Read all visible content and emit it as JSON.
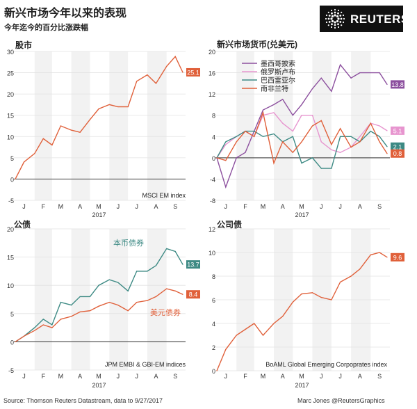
{
  "title": "新兴市场今年以来的表现",
  "subtitle": "今年迄今的百分比涨跌幅",
  "logo": "REUTERS",
  "footer": {
    "source": "Source: Thomson Reuters Datastream, data to 9/27/2017",
    "credit": "Marc Jones @ReutersGraphics"
  },
  "colors": {
    "orange": "#e0603a",
    "purple": "#8c4f9e",
    "pink": "#e795cf",
    "teal": "#3d8a84",
    "shade": "#f2f2f2"
  },
  "chart_data": [
    {
      "type": "line",
      "title": "股市",
      "note": "MSCI EM index",
      "xlabel": "2017",
      "xticks": [
        "J",
        "F",
        "M",
        "A",
        "M",
        "J",
        "J",
        "A",
        "S"
      ],
      "ylim": [
        -5,
        30
      ],
      "yticks": [
        -5,
        0,
        5,
        10,
        15,
        20,
        25,
        30
      ],
      "x": [
        "2017-01-01",
        "2017-01-15",
        "2017-02-01",
        "2017-02-15",
        "2017-03-01",
        "2017-03-15",
        "2017-04-01",
        "2017-04-15",
        "2017-05-01",
        "2017-05-15",
        "2017-06-01",
        "2017-06-15",
        "2017-07-01",
        "2017-07-15",
        "2017-08-01",
        "2017-08-15",
        "2017-09-01",
        "2017-09-15",
        "2017-09-27"
      ],
      "series": [
        {
          "color": "orange",
          "last_label": "25.1",
          "values": [
            0,
            4,
            6,
            9.5,
            8,
            12.5,
            11.5,
            11,
            14,
            16.5,
            17.5,
            17,
            17,
            23,
            24.5,
            22.5,
            26.5,
            28.8,
            25.1
          ]
        }
      ]
    },
    {
      "type": "line",
      "title": "新兴市场货币(兑美元)",
      "xlabel": "2017",
      "xticks": [
        "J",
        "F",
        "M",
        "A",
        "M",
        "J",
        "J",
        "A",
        "S"
      ],
      "ylim": [
        -8,
        20
      ],
      "yticks": [
        -8,
        -4,
        0,
        4,
        8,
        12,
        16,
        20
      ],
      "x": [
        "2017-01-01",
        "2017-01-15",
        "2017-02-01",
        "2017-02-15",
        "2017-03-01",
        "2017-03-15",
        "2017-04-01",
        "2017-04-15",
        "2017-05-01",
        "2017-05-15",
        "2017-06-01",
        "2017-06-15",
        "2017-07-01",
        "2017-07-15",
        "2017-08-01",
        "2017-08-15",
        "2017-09-01",
        "2017-09-15",
        "2017-09-27"
      ],
      "series": [
        {
          "name": "墨西哥披索",
          "color": "purple",
          "last_label": "13.8",
          "values": [
            0,
            -5.5,
            0,
            1,
            5,
            9,
            10,
            11,
            8,
            10,
            13,
            15,
            12.5,
            17.5,
            15,
            16,
            16,
            16,
            13.8
          ]
        },
        {
          "name": "俄罗斯卢布",
          "color": "pink",
          "last_label": "5.1",
          "values": [
            0,
            2.5,
            4,
            5,
            4,
            8,
            8.5,
            6.5,
            5,
            8,
            8,
            3,
            1.5,
            1,
            2,
            4,
            6.5,
            6,
            5.1
          ]
        },
        {
          "name": "巴西雷亚尔",
          "color": "teal",
          "last_label": "2.1",
          "values": [
            0,
            3,
            4,
            5,
            5,
            4,
            4.5,
            3,
            4,
            -1,
            0,
            -2,
            -2,
            4,
            4,
            3,
            5,
            4,
            2.1
          ]
        },
        {
          "name": "南非兰特",
          "color": "orange",
          "last_label": "0.8",
          "values": [
            0,
            -0.5,
            3,
            5,
            4,
            8.5,
            -1,
            3,
            1,
            3,
            6,
            7,
            2.5,
            5.5,
            2,
            3,
            6.5,
            3,
            0.8
          ]
        }
      ]
    },
    {
      "type": "line",
      "title": "公债",
      "note": "JPM EMBI & GBI-EM indices",
      "xlabel": "2017",
      "xticks": [
        "J",
        "F",
        "M",
        "A",
        "M",
        "J",
        "J",
        "A",
        "S"
      ],
      "ylim": [
        -5,
        20
      ],
      "yticks": [
        -5,
        0,
        5,
        10,
        15,
        20
      ],
      "x": [
        "2017-01-01",
        "2017-01-15",
        "2017-02-01",
        "2017-02-15",
        "2017-03-01",
        "2017-03-15",
        "2017-04-01",
        "2017-04-15",
        "2017-05-01",
        "2017-05-15",
        "2017-06-01",
        "2017-06-15",
        "2017-07-01",
        "2017-07-15",
        "2017-08-01",
        "2017-08-15",
        "2017-09-01",
        "2017-09-15",
        "2017-09-27"
      ],
      "series": [
        {
          "name": "本币债券",
          "color": "teal",
          "last_label": "13.7",
          "values": [
            0,
            1,
            2.5,
            4,
            3,
            7,
            6.5,
            8,
            8,
            10,
            11,
            10.5,
            9,
            12.5,
            12.5,
            13.5,
            16.5,
            16,
            13.7
          ]
        },
        {
          "name": "美元债券",
          "color": "orange",
          "last_label": "8.4",
          "values": [
            0,
            1,
            2,
            3,
            2.5,
            4,
            4.5,
            5.3,
            5.5,
            6.3,
            7,
            6.5,
            5.5,
            7,
            7.3,
            8,
            9.4,
            9,
            8.4
          ]
        }
      ]
    },
    {
      "type": "line",
      "title": "公司债",
      "note": "BoAML Global Emerging Corpoprates index",
      "xlabel": "2017",
      "xticks": [
        "J",
        "F",
        "M",
        "A",
        "M",
        "J",
        "J",
        "A",
        "S"
      ],
      "ylim": [
        0,
        12
      ],
      "yticks": [
        0,
        2,
        4,
        6,
        8,
        10,
        12
      ],
      "x": [
        "2017-01-01",
        "2017-01-15",
        "2017-02-01",
        "2017-02-15",
        "2017-03-01",
        "2017-03-15",
        "2017-04-01",
        "2017-04-15",
        "2017-05-01",
        "2017-05-15",
        "2017-06-01",
        "2017-06-15",
        "2017-07-01",
        "2017-07-15",
        "2017-08-01",
        "2017-08-15",
        "2017-09-01",
        "2017-09-15",
        "2017-09-27"
      ],
      "series": [
        {
          "color": "orange",
          "last_label": "9.6",
          "values": [
            0,
            1.8,
            3,
            3.5,
            4,
            3,
            4,
            4.6,
            5.8,
            6.5,
            6.6,
            6.2,
            6,
            7.5,
            8,
            8.6,
            9.8,
            10,
            9.6
          ]
        }
      ]
    }
  ]
}
